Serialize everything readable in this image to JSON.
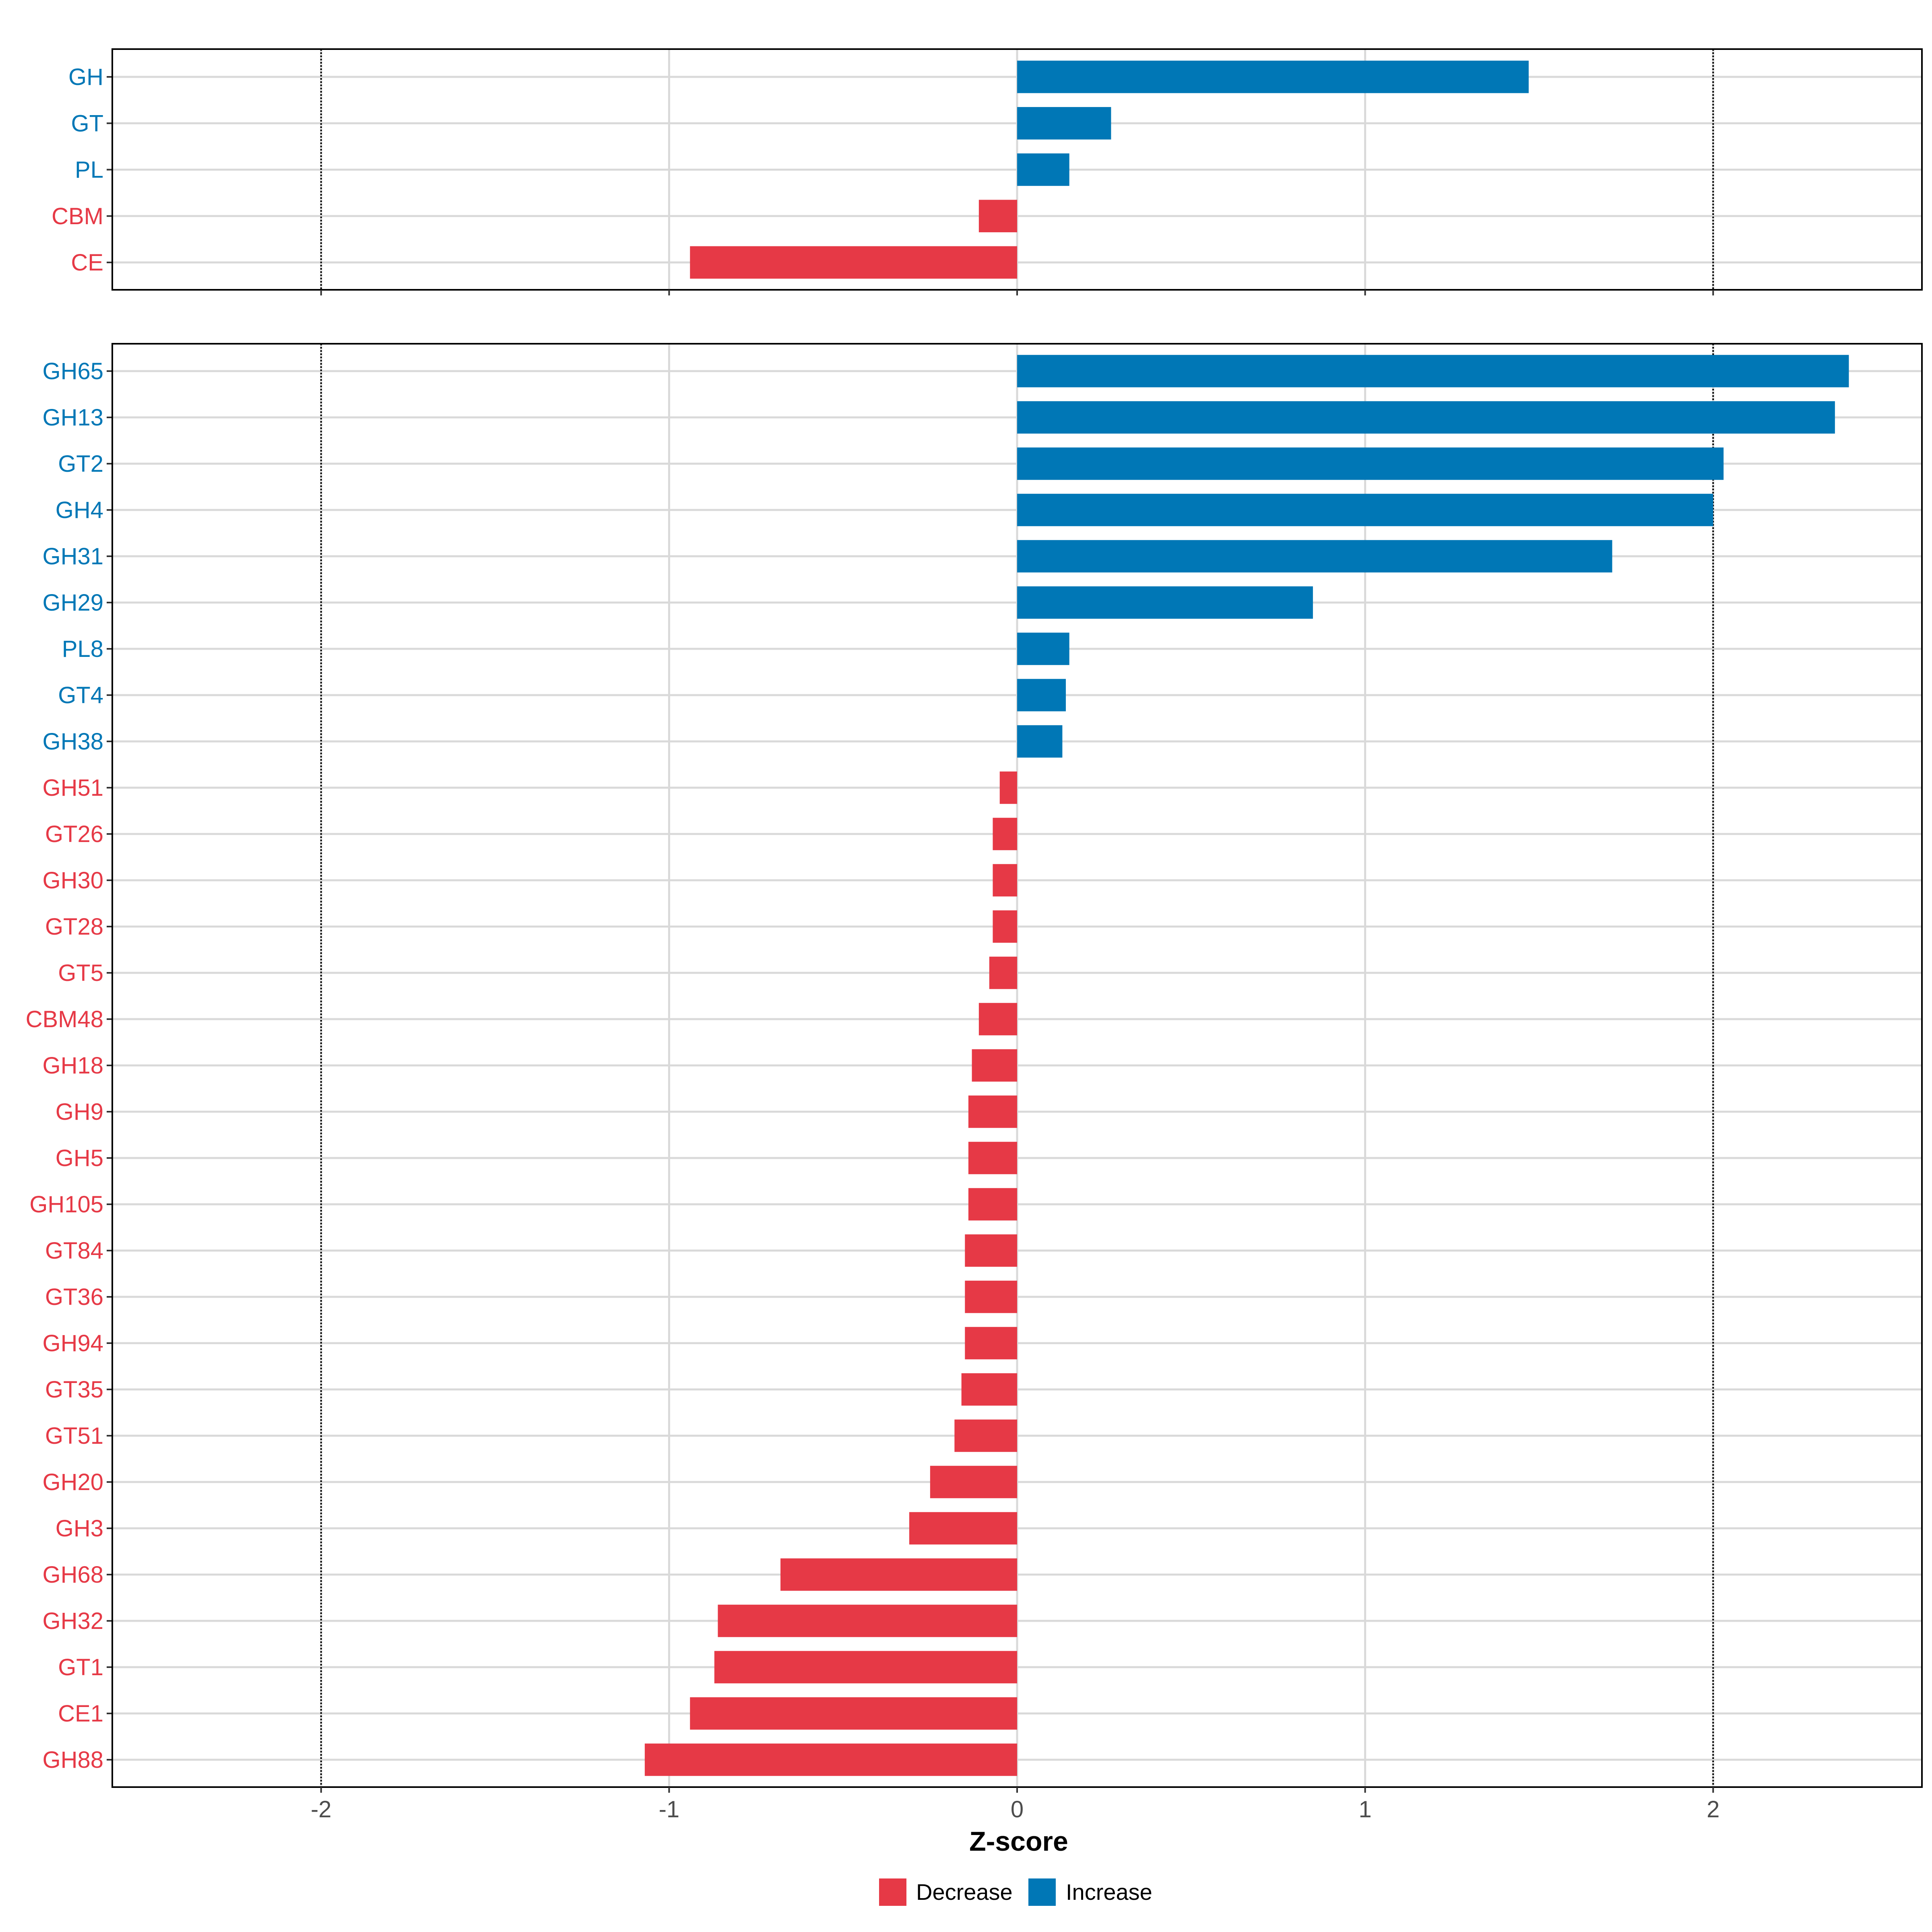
{
  "colors": {
    "decrease": "#E63946",
    "increase": "#0077B6",
    "grid": "#D9D9D9",
    "axis": "#000000",
    "tick_text": "#4D4D4D"
  },
  "chart_data": [
    {
      "type": "bar",
      "orientation": "horizontal",
      "panel": "top",
      "categories": [
        "GH",
        "GT",
        "PL",
        "CBM",
        "CE"
      ],
      "values": [
        1.47,
        0.27,
        0.15,
        -0.11,
        -0.94
      ],
      "xlim": [
        -2.6,
        2.6
      ],
      "reference_lines": [
        -2,
        2
      ]
    },
    {
      "type": "bar",
      "orientation": "horizontal",
      "panel": "bottom",
      "categories": [
        "GH65",
        "GH13",
        "GT2",
        "GH4",
        "GH31",
        "GH29",
        "PL8",
        "GT4",
        "GH38",
        "GH51",
        "GT26",
        "GH30",
        "GT28",
        "GT5",
        "CBM48",
        "GH18",
        "GH9",
        "GH5",
        "GH105",
        "GT84",
        "GT36",
        "GH94",
        "GT35",
        "GT51",
        "GH20",
        "GH3",
        "GH68",
        "GH32",
        "GT1",
        "CE1",
        "GH88"
      ],
      "values": [
        2.39,
        2.35,
        2.03,
        2.0,
        1.71,
        0.85,
        0.15,
        0.14,
        0.13,
        -0.05,
        -0.07,
        -0.07,
        -0.07,
        -0.08,
        -0.11,
        -0.13,
        -0.14,
        -0.14,
        -0.14,
        -0.15,
        -0.15,
        -0.15,
        -0.16,
        -0.18,
        -0.25,
        -0.31,
        -0.68,
        -0.86,
        -0.87,
        -0.94,
        -1.07
      ],
      "xlim": [
        -2.6,
        2.6
      ],
      "reference_lines": [
        -2,
        2
      ],
      "xticks": [
        -2,
        -1,
        0,
        1,
        2
      ],
      "xtick_labels": [
        "-2",
        "-1",
        "0",
        "1",
        "2"
      ],
      "xlabel": "Z-score"
    }
  ],
  "legend": {
    "items": [
      {
        "label": "Decrease",
        "color_key": "decrease"
      },
      {
        "label": "Increase",
        "color_key": "increase"
      }
    ]
  }
}
